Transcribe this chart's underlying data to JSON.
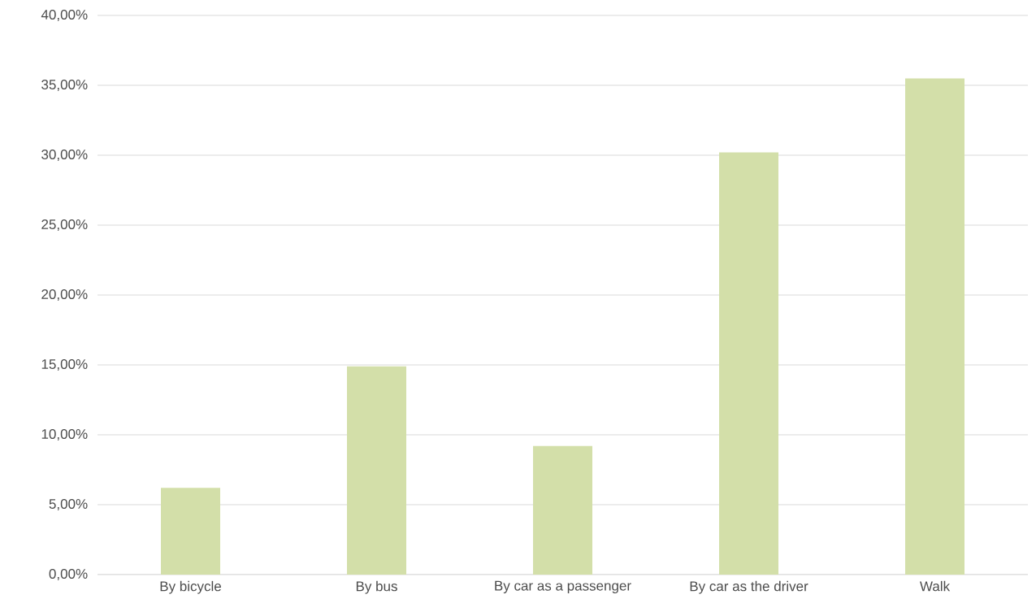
{
  "chart_data": {
    "type": "bar",
    "categories": [
      "By bicycle",
      "By bus",
      "By car as a passenger",
      "By car as the driver",
      "Walk"
    ],
    "values": [
      6.2,
      14.9,
      9.2,
      30.2,
      35.5
    ],
    "color": "#d3dfa9",
    "ylim": [
      0,
      40
    ],
    "yticks": [
      {
        "value": 0,
        "label": "0,00%"
      },
      {
        "value": 5,
        "label": "5,00%"
      },
      {
        "value": 10,
        "label": "10,00%"
      },
      {
        "value": 15,
        "label": "15,00%"
      },
      {
        "value": 20,
        "label": "20,00%"
      },
      {
        "value": 25,
        "label": "25,00%"
      },
      {
        "value": 30,
        "label": "30,00%"
      },
      {
        "value": 35,
        "label": "35,00%"
      },
      {
        "value": 40,
        "label": "40,00%"
      }
    ],
    "grid": "y"
  }
}
